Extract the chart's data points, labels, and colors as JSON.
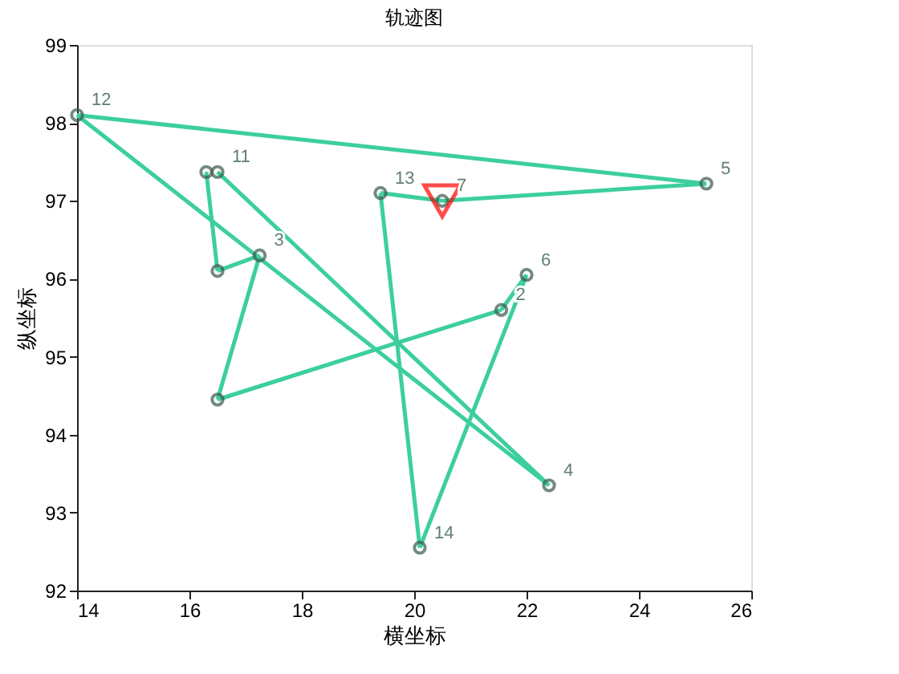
{
  "chart_data": {
    "type": "line",
    "title": "轨迹图",
    "xlabel": "横坐标",
    "ylabel": "纵坐标",
    "xlim": [
      14,
      26
    ],
    "xticks": [
      14,
      16,
      18,
      20,
      22,
      24,
      26
    ],
    "ylim": [
      92,
      99
    ],
    "yticks": [
      92,
      93,
      94,
      95,
      96,
      97,
      98,
      99
    ],
    "grid": false,
    "line_style": "solid",
    "series": [
      {
        "marker": "none",
        "color": "#3ccf9c",
        "x": [
          20.5,
          25.2
        ],
        "values": [
          97.0,
          97.22
        ]
      },
      {
        "type": "line",
        "marker": "none",
        "color": "#3ccf9c",
        "x": [
          25.2,
          14.0
        ],
        "values": [
          97.22,
          98.1
        ]
      },
      {
        "type": "line",
        "marker": "none",
        "color": "#3ccf9c",
        "x": [
          14.0,
          22.4
        ],
        "values": [
          98.1,
          93.35
        ]
      },
      {
        "type": "line",
        "marker": "none",
        "color": "#3ccf9c",
        "x": [
          22.4,
          16.5
        ],
        "values": [
          93.35,
          97.37
        ]
      },
      {
        "type": "line",
        "marker": "none",
        "color": "#3ccf9c",
        "x": [
          16.3,
          16.5
        ],
        "values": [
          97.37,
          96.1
        ]
      },
      {
        "type": "line",
        "marker": "none",
        "color": "#3ccf9c",
        "x": [
          16.5,
          17.25
        ],
        "values": [
          96.1,
          96.3
        ]
      },
      {
        "type": "line",
        "marker": "none",
        "color": "#3ccf9c",
        "x": [
          17.25,
          16.5
        ],
        "values": [
          96.3,
          94.45
        ]
      },
      {
        "type": "line",
        "marker": "none",
        "color": "#3ccf9c",
        "x": [
          16.5,
          21.55
        ],
        "values": [
          94.45,
          95.6
        ]
      },
      {
        "type": "line",
        "marker": "none",
        "color": "#3ccf9c",
        "x": [
          21.55,
          22.0
        ],
        "values": [
          95.6,
          96.05
        ]
      },
      {
        "type": "line",
        "marker": "none",
        "color": "#3ccf9c",
        "x": [
          22.0,
          20.1
        ],
        "values": [
          96.05,
          92.55
        ]
      },
      {
        "type": "line",
        "marker": "none",
        "color": "#3ccf9c",
        "x": [
          20.1,
          19.4
        ],
        "values": [
          92.55,
          97.1
        ]
      },
      {
        "type": "line",
        "marker": "none",
        "color": "#3ccf9c",
        "x": [
          19.4,
          20.5
        ],
        "values": [
          97.1,
          97.0
        ]
      },
      {
        "type": "scatter",
        "marker": "circle",
        "color": "#3a5a4a",
        "x": [
          20.5,
          25.2,
          14.0,
          22.4,
          16.5,
          16.3,
          16.5,
          17.25,
          16.5,
          21.55,
          22.0,
          20.1,
          19.4
        ],
        "values": [
          97.0,
          97.22,
          98.1,
          93.35,
          97.37,
          97.37,
          96.1,
          96.3,
          94.45,
          95.6,
          96.05,
          92.55,
          97.1
        ]
      },
      {
        "type": "scatter",
        "marker": "triangle",
        "color": "#ff0000",
        "x": [
          20.5
        ],
        "values": [
          97.0
        ]
      }
    ],
    "annotations": [
      {
        "text": "7",
        "x": 20.5,
        "y": 97.0
      },
      {
        "text": "5",
        "x": 25.2,
        "y": 97.22
      },
      {
        "text": "12",
        "x": 14.0,
        "y": 98.1
      },
      {
        "text": "4",
        "x": 22.4,
        "y": 93.35
      },
      {
        "text": "11",
        "x": 16.5,
        "y": 97.37
      },
      {
        "text": "3",
        "x": 17.25,
        "y": 96.3
      },
      {
        "text": "2",
        "x": 21.55,
        "y": 95.6
      },
      {
        "text": "6",
        "x": 22.0,
        "y": 96.05
      },
      {
        "text": "14",
        "x": 20.1,
        "y": 92.55
      },
      {
        "text": "13",
        "x": 19.4,
        "y": 97.1
      }
    ]
  }
}
